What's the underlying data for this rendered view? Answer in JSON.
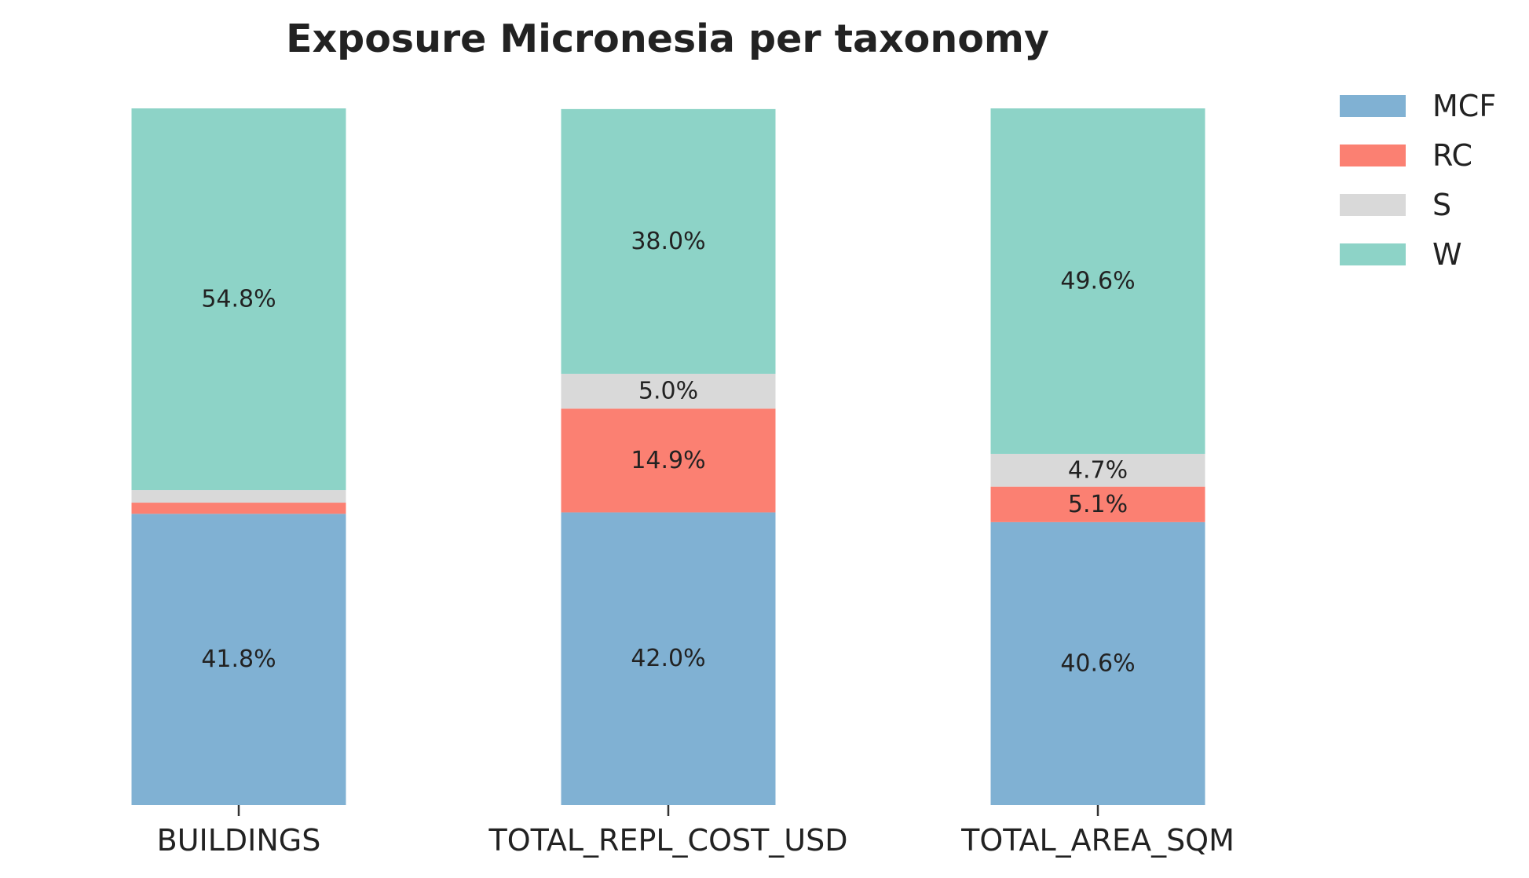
{
  "chart_data": {
    "type": "bar",
    "stacked": true,
    "title": "Exposure Micronesia per taxonomy",
    "xlabel": "",
    "ylabel": "",
    "ylim": [
      0,
      100
    ],
    "grid": false,
    "legend_position": "top-right, outside plot",
    "categories": [
      "BUILDINGS",
      "TOTAL_REPL_COST_USD",
      "TOTAL_AREA_SQM"
    ],
    "series": [
      {
        "name": "MCF",
        "color": "#80B1D3",
        "values": [
          41.8,
          42.0,
          40.6
        ],
        "labels": [
          "41.8%",
          "42.0%",
          "40.6%"
        ]
      },
      {
        "name": "RC",
        "color": "#FB8072",
        "values": [
          1.6,
          14.9,
          5.1
        ],
        "labels": [
          "",
          "14.9%",
          "5.1%"
        ]
      },
      {
        "name": "S",
        "color": "#D9D9D9",
        "values": [
          1.8,
          5.0,
          4.7
        ],
        "labels": [
          "",
          "5.0%",
          "4.7%"
        ]
      },
      {
        "name": "W",
        "color": "#8DD3C7",
        "values": [
          54.8,
          38.0,
          49.6
        ],
        "labels": [
          "54.8%",
          "38.0%",
          "49.6%"
        ]
      }
    ]
  }
}
